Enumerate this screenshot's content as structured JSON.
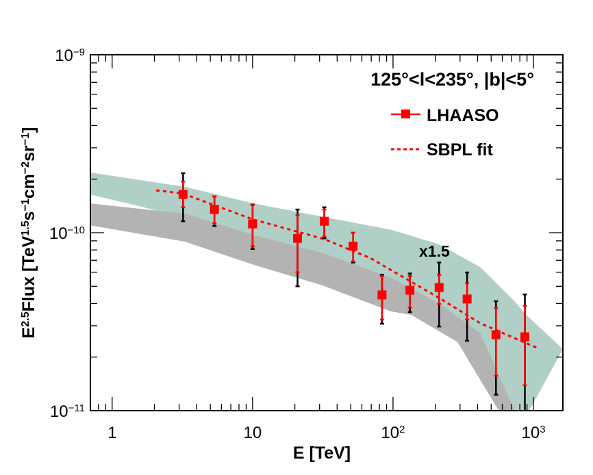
{
  "chart_data": {
    "type": "scatter",
    "xlabel": "E [TeV]",
    "ylabel": "E^{2.5}Flux [TeV^{1.5}s^{−1}cm^{−2}sr^{−1}]",
    "xscale": "log",
    "yscale": "log",
    "xlim": [
      0.7,
      1620
    ],
    "ylim": [
      1e-11,
      1e-09
    ],
    "x_ticks": [
      {
        "value": 1,
        "label": "1"
      },
      {
        "value": 10,
        "label": "10"
      },
      {
        "value": 100,
        "label": "10^{2}"
      },
      {
        "value": 1000,
        "label": "10^{3}"
      }
    ],
    "y_ticks": [
      {
        "value": 1e-11,
        "label": "10^{−11}"
      },
      {
        "value": 1e-10,
        "label": "10^{−10}"
      },
      {
        "value": 1e-09,
        "label": "10^{−9}"
      }
    ],
    "grid": false,
    "annotation_region": "125°<l<235°, |b|<5°",
    "annotation_scale": "x1.5",
    "legend": {
      "placement": "top-right",
      "entries": [
        {
          "label": "LHAASO",
          "style": "marker-line"
        },
        {
          "label": "SBPL fit",
          "style": "dotted"
        }
      ]
    },
    "colors": {
      "data": "#ff0000",
      "stat_err": "#ff0000",
      "sys_err": "#000000",
      "band_scaled": "#b0d0c7",
      "band": "#b3b3b3"
    },
    "series": [
      {
        "name": "LHAASO",
        "x": [
          3.2,
          5.35,
          10,
          20.9,
          32.4,
          52,
          83.5,
          132,
          213,
          337,
          541,
          869
        ],
        "y": [
          1.64e-10,
          1.35e-10,
          1.12e-10,
          9.3e-11,
          1.16e-10,
          8.4e-11,
          4.47e-11,
          4.75e-11,
          4.92e-11,
          4.24e-11,
          2.67e-11,
          2.6e-11
        ],
        "y_stat_low": [
          1.39e-10,
          1.13e-10,
          8.4e-11,
          6e-11,
          9.5e-11,
          6.9e-11,
          3.25e-11,
          3.8e-11,
          3.98e-11,
          3.25e-11,
          1.57e-11,
          1.39e-11
        ],
        "y_stat_high": [
          1.94e-10,
          1.6e-10,
          1.43e-10,
          1.25e-10,
          1.35e-10,
          1e-10,
          5.7e-11,
          5.7e-11,
          5.8e-11,
          5.2e-11,
          3.78e-11,
          3.88e-11
        ],
        "y_tot_low": [
          1.16e-10,
          1.09e-10,
          8.1e-11,
          5e-11,
          9.3e-11,
          6.8e-11,
          3.08e-11,
          3.58e-11,
          2.97e-11,
          2.47e-11,
          1.23e-11,
          9e-12
        ],
        "y_tot_high": [
          2.16e-10,
          1.6e-10,
          1.44e-10,
          1.35e-10,
          1.39e-10,
          1e-10,
          5.8e-11,
          5.9e-11,
          6.8e-11,
          5.98e-11,
          4.12e-11,
          4.5e-11
        ]
      },
      {
        "name": "SBPL fit",
        "x": [
          2.06,
          3.19,
          10,
          32.4,
          69,
          213,
          418,
          1052
        ],
        "y": [
          1.73e-10,
          1.66e-10,
          1.19e-10,
          9.2e-11,
          7.2e-11,
          4.3e-11,
          3.1e-11,
          2.26e-11
        ]
      }
    ],
    "bands": [
      {
        "id": "scaled-band",
        "upper": [
          [
            0.7,
            2.18e-10
          ],
          [
            3.3,
            1.81e-10
          ],
          [
            10.2,
            1.46e-10
          ],
          [
            31.4,
            1.23e-10
          ],
          [
            96.7,
            1.04e-10
          ],
          [
            213,
            8.6e-11
          ],
          [
            418,
            6.4e-11
          ],
          [
            734,
            4.12e-11
          ],
          [
            889,
            3.45e-11
          ],
          [
            1620,
            2.22e-11
          ]
        ],
        "lower": [
          [
            0.7,
            1.64e-10
          ],
          [
            3.3,
            1.22e-10
          ],
          [
            10.2,
            9.6e-11
          ],
          [
            31.4,
            7e-11
          ],
          [
            96.7,
            5.15e-11
          ],
          [
            213,
            3.78e-11
          ],
          [
            418,
            2.43e-11
          ],
          [
            700,
            1e-11
          ],
          [
            800,
            8e-12
          ]
        ]
      },
      {
        "id": "band",
        "upper": [
          [
            0.7,
            1.46e-10
          ],
          [
            3.3,
            1.28e-10
          ],
          [
            10.2,
            9.7e-11
          ],
          [
            31.4,
            7.7e-11
          ],
          [
            96.7,
            5.6e-11
          ],
          [
            213,
            4e-11
          ],
          [
            418,
            2.72e-11
          ],
          [
            734,
            1e-11
          ],
          [
            800,
            8e-12
          ]
        ],
        "lower": [
          [
            0.7,
            1.1e-10
          ],
          [
            3.3,
            8.9e-11
          ],
          [
            10.2,
            6.6e-11
          ],
          [
            31.4,
            5.06e-11
          ],
          [
            96.7,
            3.61e-11
          ],
          [
            135,
            3.45e-11
          ],
          [
            288,
            2.43e-11
          ],
          [
            566,
            1e-11
          ],
          [
            620,
            8e-12
          ]
        ]
      }
    ]
  }
}
